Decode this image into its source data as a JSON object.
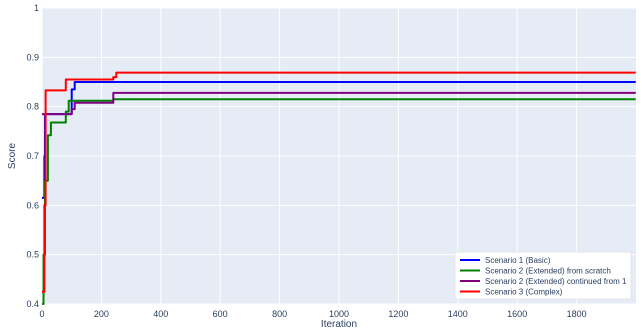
{
  "chart_data": {
    "type": "line",
    "xlabel": "Iteration",
    "ylabel": "Score",
    "xlim": [
      0,
      2000
    ],
    "ylim": [
      0.4,
      1.0
    ],
    "xticks": [
      0,
      200,
      400,
      600,
      800,
      1000,
      1200,
      1400,
      1600,
      1800
    ],
    "yticks": [
      0.4,
      0.5,
      0.6,
      0.7,
      0.8,
      0.9,
      1.0
    ],
    "xtick_labels": [
      "0",
      "200",
      "400",
      "600",
      "800",
      "1000",
      "1200",
      "1400",
      "1600",
      "1800"
    ],
    "ytick_labels": [
      "0.4",
      "0.5",
      "0.6",
      "0.7",
      "0.8",
      "0.9",
      "1"
    ],
    "grid": true,
    "legend_position": "bottom-right",
    "series": [
      {
        "name": "Scenario 1 (Basic)",
        "color": "#0000ff",
        "x": [
          0,
          8,
          8,
          10,
          10,
          20,
          20,
          100,
          100,
          110,
          110,
          1999
        ],
        "y": [
          0.615,
          0.615,
          0.7,
          0.7,
          0.785,
          0.785,
          0.785,
          0.785,
          0.835,
          0.835,
          0.85,
          0.85
        ]
      },
      {
        "name": "Scenario 2 (Extended) from scratch",
        "color": "#008000",
        "x": [
          0,
          5,
          5,
          10,
          10,
          20,
          20,
          30,
          30,
          80,
          80,
          90,
          90,
          230,
          230,
          240,
          240,
          1999
        ],
        "y": [
          0.4,
          0.4,
          0.5,
          0.5,
          0.65,
          0.65,
          0.742,
          0.742,
          0.768,
          0.768,
          0.79,
          0.79,
          0.812,
          0.812,
          0.812,
          0.812,
          0.815,
          0.815
        ]
      },
      {
        "name": "Scenario 2 (Extended) continued from 1",
        "color": "#800080",
        "x": [
          0,
          100,
          100,
          110,
          110,
          240,
          240,
          1999
        ],
        "y": [
          0.785,
          0.785,
          0.795,
          0.795,
          0.808,
          0.808,
          0.828,
          0.828
        ]
      },
      {
        "name": "Scenario 3 (Complex)",
        "color": "#ff0000",
        "x": [
          0,
          8,
          8,
          12,
          12,
          80,
          80,
          240,
          240,
          250,
          250,
          1999
        ],
        "y": [
          0.425,
          0.425,
          0.6,
          0.6,
          0.833,
          0.833,
          0.855,
          0.855,
          0.86,
          0.86,
          0.869,
          0.869
        ]
      }
    ]
  },
  "colors": {
    "plot_background": "#e5ecf6",
    "grid": "#ffffff",
    "text": "#2a3f5f"
  }
}
